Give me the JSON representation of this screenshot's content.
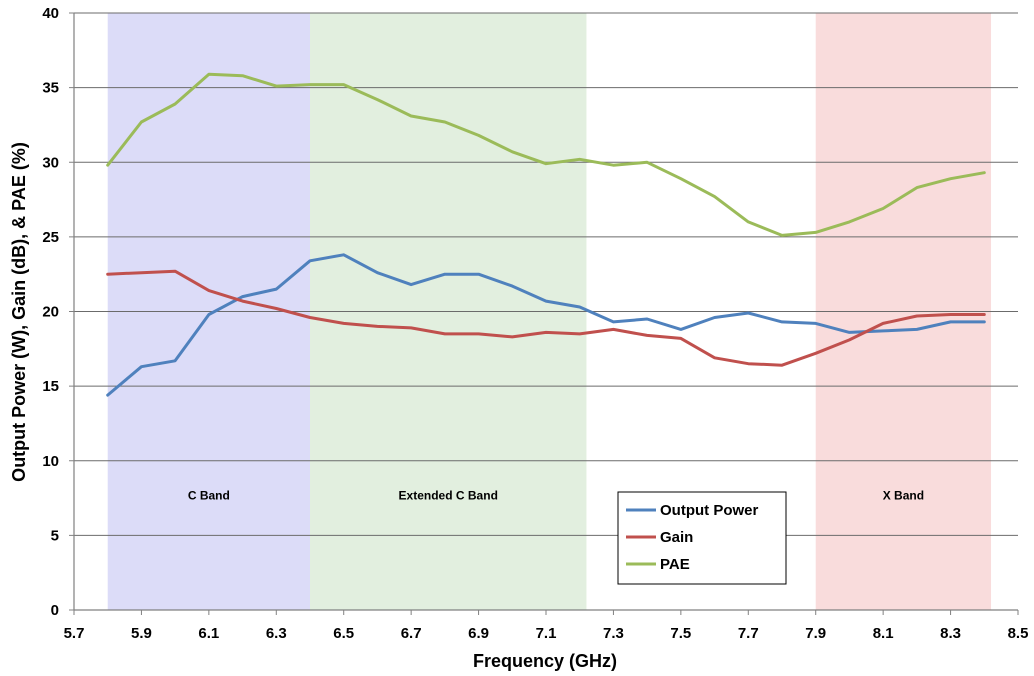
{
  "chart_data": {
    "type": "line",
    "xlabel": "Frequency (GHz)",
    "ylabel": "Output Power (W), Gain (dB), & PAE (%)",
    "xlim": [
      5.7,
      8.5
    ],
    "ylim": [
      0,
      40
    ],
    "x_ticks": [
      "5.7",
      "5.9",
      "6.1",
      "6.3",
      "6.5",
      "6.7",
      "6.9",
      "7.1",
      "7.3",
      "7.5",
      "7.7",
      "7.9",
      "8.1",
      "8.3",
      "8.5"
    ],
    "y_ticks": [
      "0",
      "5",
      "10",
      "15",
      "20",
      "25",
      "30",
      "35",
      "40"
    ],
    "grid": "horizontal",
    "legend_position": "bottom-center",
    "bands": [
      {
        "label": "C Band",
        "x_start": 5.8,
        "x_end": 6.4,
        "color": "#dcdcf8"
      },
      {
        "label": "Extended C Band",
        "x_start": 6.4,
        "x_end": 7.22,
        "color": "#e2efdf"
      },
      {
        "label": "X Band",
        "x_start": 7.9,
        "x_end": 8.42,
        "color": "#f9dcdc"
      }
    ],
    "x": [
      5.8,
      5.9,
      6.0,
      6.1,
      6.2,
      6.3,
      6.4,
      6.5,
      6.6,
      6.7,
      6.8,
      6.9,
      7.0,
      7.1,
      7.2,
      7.3,
      7.4,
      7.5,
      7.6,
      7.7,
      7.8,
      7.9,
      8.0,
      8.1,
      8.2,
      8.3,
      8.4
    ],
    "series": [
      {
        "name": "Output Power",
        "color": "#4f81bd",
        "values": [
          14.4,
          16.3,
          16.7,
          19.8,
          21.0,
          21.5,
          23.4,
          23.8,
          22.6,
          21.8,
          22.5,
          22.5,
          21.7,
          20.7,
          20.3,
          19.3,
          19.5,
          18.8,
          19.6,
          19.9,
          19.3,
          19.2,
          18.6,
          18.7,
          18.8,
          19.3,
          19.3
        ]
      },
      {
        "name": "Gain",
        "color": "#c0504d",
        "values": [
          22.5,
          22.6,
          22.7,
          21.4,
          20.7,
          20.2,
          19.6,
          19.2,
          19.0,
          18.9,
          18.5,
          18.5,
          18.3,
          18.6,
          18.5,
          18.8,
          18.4,
          18.2,
          16.9,
          16.5,
          16.4,
          17.2,
          18.1,
          19.2,
          19.7,
          19.8,
          19.8
        ]
      },
      {
        "name": "PAE",
        "color": "#9bbb59",
        "values": [
          29.8,
          32.7,
          33.9,
          35.9,
          35.8,
          35.1,
          35.2,
          35.2,
          34.2,
          33.1,
          32.7,
          31.8,
          30.7,
          29.9,
          30.2,
          29.8,
          30.0,
          28.9,
          27.7,
          26.0,
          25.1,
          25.3,
          26.0,
          26.9,
          28.3,
          28.9,
          29.3
        ]
      }
    ]
  }
}
